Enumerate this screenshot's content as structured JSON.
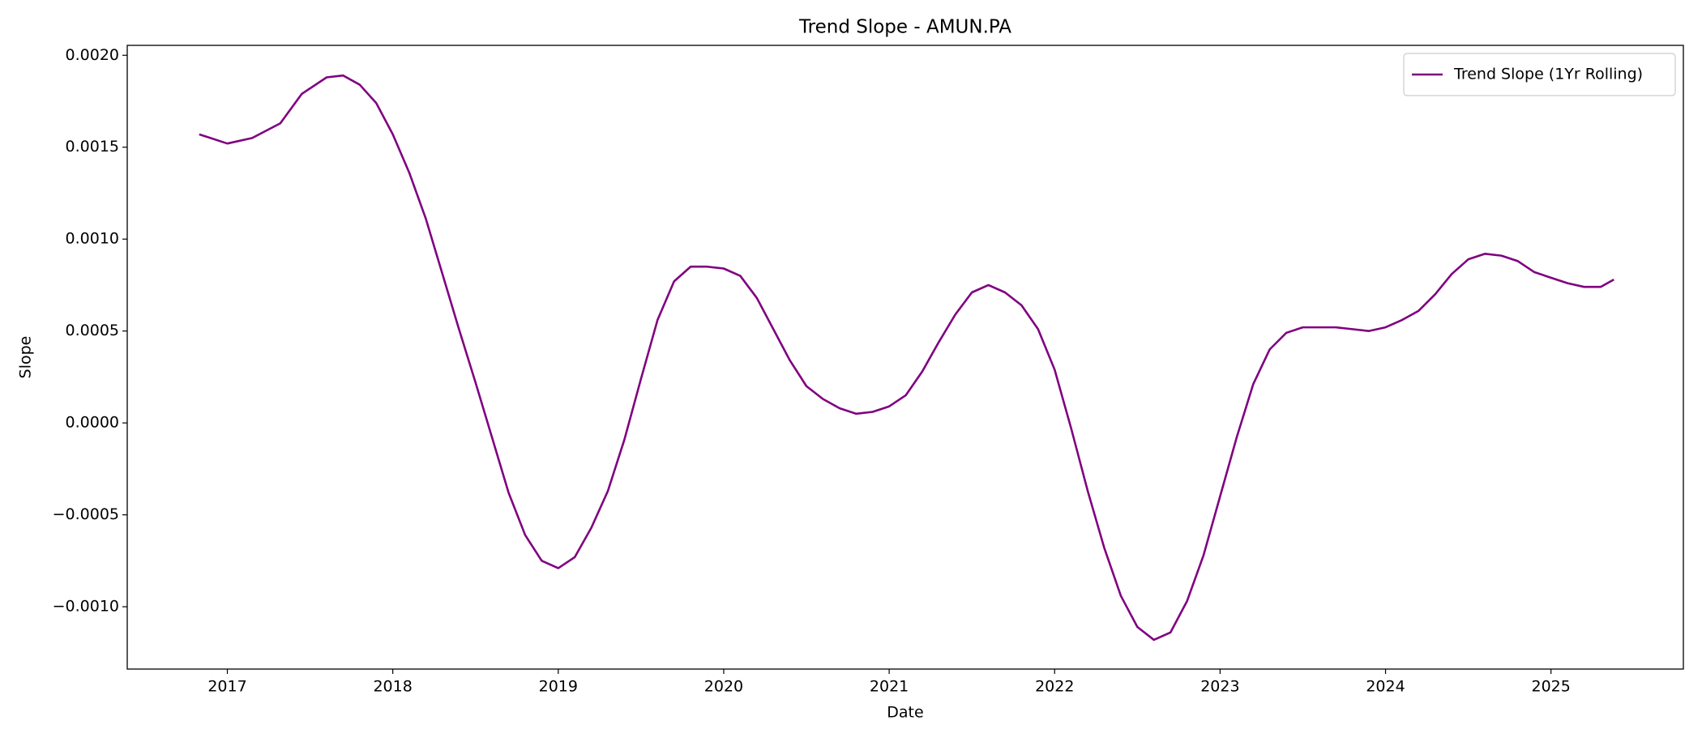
{
  "chart_data": {
    "type": "line",
    "title": "Trend Slope - AMUN.PA",
    "xlabel": "Date",
    "ylabel": "Slope",
    "x": [
      2016.83,
      2017.0,
      2017.15,
      2017.32,
      2017.45,
      2017.6,
      2017.7,
      2017.8,
      2017.9,
      2018.0,
      2018.1,
      2018.2,
      2018.3,
      2018.4,
      2018.5,
      2018.6,
      2018.7,
      2018.8,
      2018.9,
      2019.0,
      2019.1,
      2019.2,
      2019.3,
      2019.4,
      2019.5,
      2019.6,
      2019.7,
      2019.8,
      2019.9,
      2020.0,
      2020.1,
      2020.2,
      2020.3,
      2020.4,
      2020.5,
      2020.6,
      2020.7,
      2020.8,
      2020.9,
      2021.0,
      2021.1,
      2021.2,
      2021.3,
      2021.4,
      2021.5,
      2021.6,
      2021.7,
      2021.8,
      2021.9,
      2022.0,
      2022.1,
      2022.2,
      2022.3,
      2022.4,
      2022.5,
      2022.6,
      2022.7,
      2022.8,
      2022.9,
      2023.0,
      2023.1,
      2023.2,
      2023.3,
      2023.4,
      2023.5,
      2023.6,
      2023.7,
      2023.8,
      2023.9,
      2024.0,
      2024.1,
      2024.2,
      2024.3,
      2024.4,
      2024.5,
      2024.6,
      2024.7,
      2024.8,
      2024.9,
      2025.0,
      2025.1,
      2025.2,
      2025.3,
      2025.38
    ],
    "series": [
      {
        "name": "Trend Slope (1Yr Rolling)",
        "color": "#800080",
        "values": [
          0.00157,
          0.00152,
          0.00155,
          0.00163,
          0.00179,
          0.00188,
          0.00189,
          0.00184,
          0.00174,
          0.00157,
          0.00136,
          0.00111,
          0.00081,
          0.00051,
          0.00022,
          -8e-05,
          -0.00038,
          -0.00061,
          -0.00075,
          -0.00079,
          -0.00073,
          -0.00057,
          -0.00037,
          -9e-05,
          0.00024,
          0.00056,
          0.00077,
          0.00085,
          0.00085,
          0.00084,
          0.0008,
          0.00068,
          0.00051,
          0.00034,
          0.0002,
          0.00013,
          8e-05,
          5e-05,
          6e-05,
          9e-05,
          0.00015,
          0.00028,
          0.00044,
          0.00059,
          0.00071,
          0.00075,
          0.00071,
          0.00064,
          0.00051,
          0.00029,
          -3e-05,
          -0.00037,
          -0.00068,
          -0.00094,
          -0.00111,
          -0.00118,
          -0.00114,
          -0.00097,
          -0.00072,
          -0.0004,
          -8e-05,
          0.00021,
          0.0004,
          0.00049,
          0.00052,
          0.00052,
          0.00052,
          0.00051,
          0.0005,
          0.00052,
          0.00056,
          0.00061,
          0.0007,
          0.00081,
          0.00089,
          0.00092,
          0.00091,
          0.00088,
          0.00082,
          0.00079,
          0.00076,
          0.00074,
          0.00074,
          0.00078
        ]
      }
    ],
    "xlim": [
      2016.395,
      2025.8
    ],
    "xticks": [
      2017,
      2018,
      2019,
      2020,
      2021,
      2022,
      2023,
      2024,
      2025
    ],
    "ylim": [
      -0.001339,
      0.002054
    ],
    "yticks": [
      {
        "value": -0.001,
        "label": "−0.0010"
      },
      {
        "value": -0.0005,
        "label": "−0.0005"
      },
      {
        "value": 0,
        "label": "0.0000"
      },
      {
        "value": 0.0005,
        "label": "0.0005"
      },
      {
        "value": 0.001,
        "label": "0.0010"
      },
      {
        "value": 0.0015,
        "label": "0.0015"
      },
      {
        "value": 0.002,
        "label": "0.0020"
      }
    ],
    "legend": "upper right"
  }
}
